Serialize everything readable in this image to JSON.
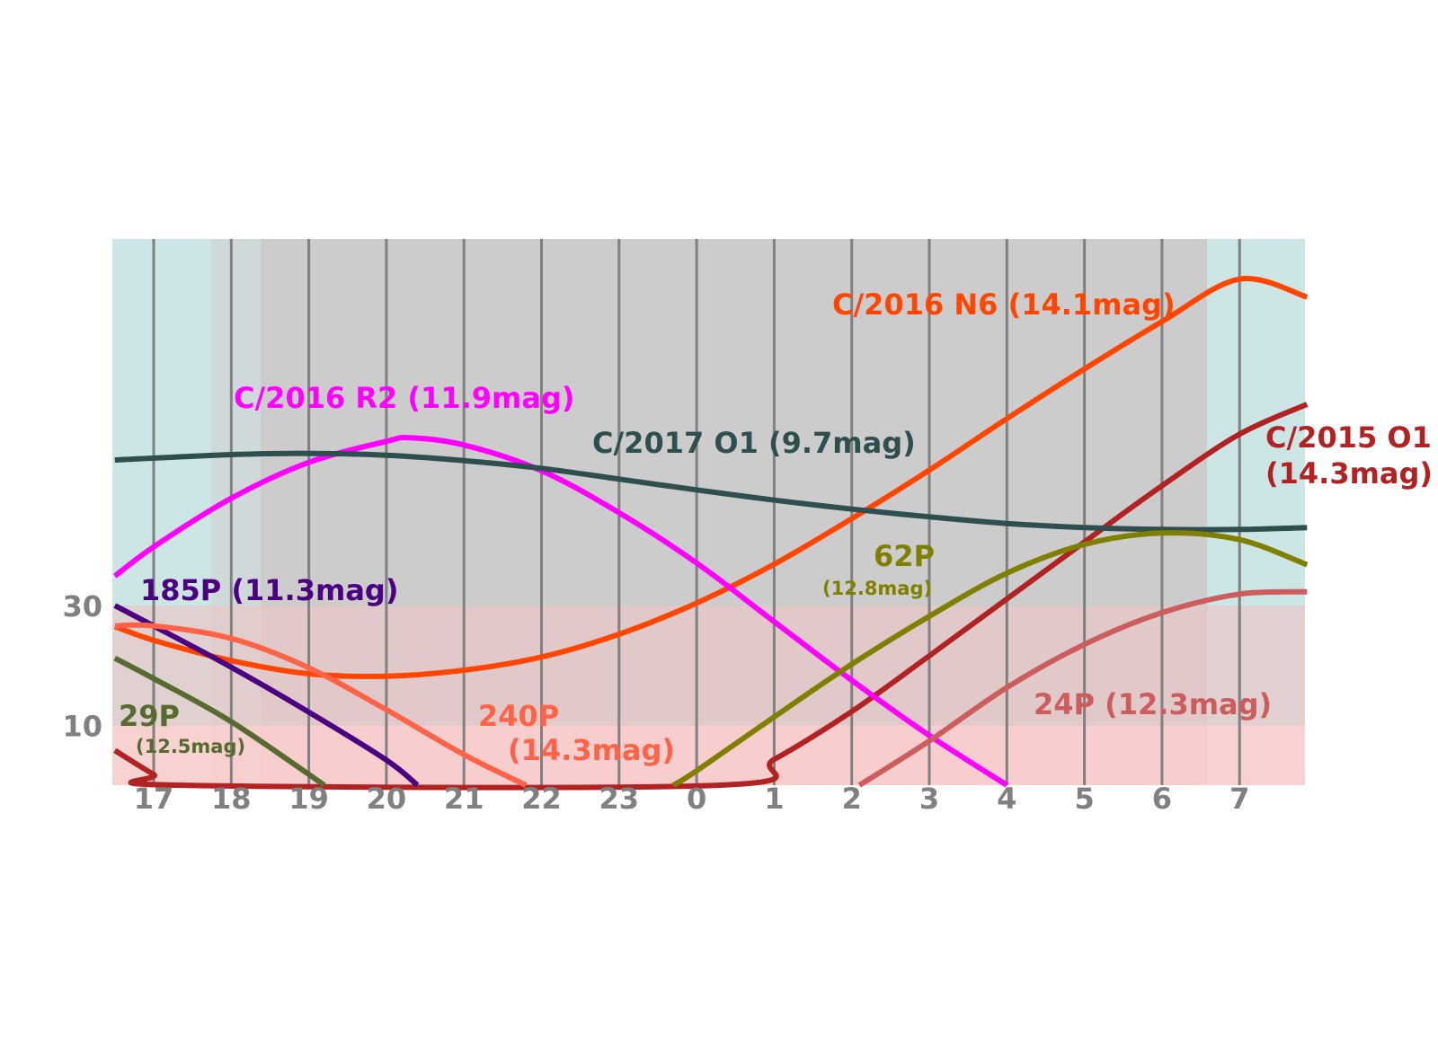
{
  "chart_data": {
    "type": "line",
    "title": "",
    "xlabel": "",
    "ylabel": "",
    "x_ticks": [
      "17",
      "18",
      "19",
      "20",
      "21",
      "22",
      "23",
      "0",
      "1",
      "2",
      "3",
      "4",
      "5",
      "6",
      "7"
    ],
    "y_ticks": [
      "10",
      "30"
    ],
    "xlim": [
      16.47,
      31.87
    ],
    "ylim": [
      0,
      90
    ],
    "x_unit": "hour (continuous, 24 = 0h next day)",
    "y_unit": "altitude (deg)",
    "grid": "vertical",
    "background_bands": [
      {
        "name": "very low altitude",
        "y_from": 0,
        "y_to": 10,
        "color": "#ffcccc"
      },
      {
        "name": "low altitude",
        "y_from": 10,
        "y_to": 30,
        "color": "#e8c8c8"
      },
      {
        "name": "night",
        "x_from": 18.3,
        "x_to": 30.6,
        "color": "#cccccc"
      },
      {
        "name": "twilight",
        "color": "#cce6e6"
      }
    ],
    "series": [
      {
        "name": "C/2016 N6 (14.1mag)",
        "color": "#ff4500",
        "x": [
          16.5,
          17,
          18,
          19,
          20,
          21,
          22,
          23,
          24,
          25,
          26,
          27,
          28,
          29,
          30,
          31,
          31.87
        ],
        "y": [
          26.5,
          24.2,
          20.8,
          18.6,
          18.2,
          19.2,
          21.4,
          25.2,
          30.4,
          36.9,
          44.5,
          52.6,
          61.2,
          69.5,
          77.4,
          84.5,
          81.5
        ]
      },
      {
        "name": "C/2015 O1 (14.3mag)",
        "color": "#b22222",
        "x": [
          16.5,
          17,
          17.3,
          24.3,
          25,
          26,
          27,
          28,
          29,
          30,
          31,
          31.87
        ],
        "y": [
          5.8,
          1.8,
          0,
          0,
          4.3,
          12.3,
          21.6,
          31.1,
          40.6,
          50.0,
          58.6,
          63.6
        ]
      },
      {
        "name": "C/2016 R2 (11.9mag)",
        "color": "#ff00ff",
        "x": [
          16.5,
          17,
          18,
          19,
          20,
          20.3,
          21,
          22,
          23,
          24,
          25,
          26,
          27,
          28
        ],
        "y": [
          34.9,
          39.8,
          47.9,
          53.9,
          57.4,
          58.0,
          56.8,
          52.5,
          45.5,
          37.1,
          27.3,
          17.5,
          8.3,
          0
        ]
      },
      {
        "name": "C/2017 O1 (9.7mag)",
        "color": "#2f4f4f",
        "x": [
          16.5,
          18,
          19,
          20,
          21,
          22,
          23,
          24,
          25,
          26,
          27,
          28,
          29,
          30,
          31,
          31.87
        ],
        "y": [
          54.3,
          55.2,
          55.4,
          55.1,
          54.2,
          52.9,
          51.1,
          49.3,
          47.6,
          46.1,
          44.8,
          43.7,
          43.0,
          42.7,
          42.7,
          43.0
        ]
      },
      {
        "name": "185P (11.3mag)",
        "color": "#4b0082",
        "x": [
          16.5,
          17,
          18,
          19,
          20,
          20.4
        ],
        "y": [
          30.0,
          26.6,
          19.7,
          12.2,
          4.2,
          0
        ]
      },
      {
        "name": "240P (14.3mag)",
        "color": "#ff6347",
        "x": [
          16.5,
          17,
          18,
          19,
          20,
          21,
          21.8
        ],
        "y": [
          26.6,
          26.6,
          24.5,
          19.6,
          12.6,
          5.1,
          0
        ]
      },
      {
        "name": "29P (12.5mag)",
        "color": "#556b2f",
        "x": [
          16.5,
          17,
          18,
          19.2
        ],
        "y": [
          21.2,
          17.8,
          10.6,
          0
        ]
      },
      {
        "name": "62P (12.8mag)",
        "color": "#808000",
        "x": [
          23.7,
          24,
          25,
          26,
          27,
          28,
          29,
          30,
          31,
          31.87
        ],
        "y": [
          0,
          2.4,
          11.4,
          20.2,
          28.2,
          35.4,
          40.2,
          42.1,
          41.0,
          36.8
        ]
      },
      {
        "name": "24P (12.3mag)",
        "color": "#cd5c5c",
        "x": [
          26.1,
          27,
          28,
          29,
          30,
          31,
          31.87
        ],
        "y": [
          0,
          7.4,
          16.3,
          23.5,
          28.8,
          31.9,
          32.3
        ]
      }
    ],
    "annotations": [
      {
        "text": "C/2016 N6 (14.1mag)",
        "color": "#ff4500"
      },
      {
        "text": "C/2015 O1",
        "color": "#b22222"
      },
      {
        "text": "(14.3mag)",
        "color": "#b22222"
      },
      {
        "text": "C/2016 R2 (11.9mag)",
        "color": "#ff00ff"
      },
      {
        "text": "C/2017 O1 (9.7mag)",
        "color": "#2f4f4f"
      },
      {
        "text": "185P (11.3mag)",
        "color": "#4b0082"
      },
      {
        "text": "240P",
        "color": "#ff6347"
      },
      {
        "text": "(14.3mag)",
        "color": "#ff6347"
      },
      {
        "text": "29P",
        "color": "#556b2f"
      },
      {
        "text": "(12.5mag)",
        "color": "#556b2f"
      },
      {
        "text": "62P",
        "color": "#808000"
      },
      {
        "text": "(12.8mag)",
        "color": "#808000"
      },
      {
        "text": "24P (12.3mag)",
        "color": "#cd5c5c"
      }
    ]
  }
}
